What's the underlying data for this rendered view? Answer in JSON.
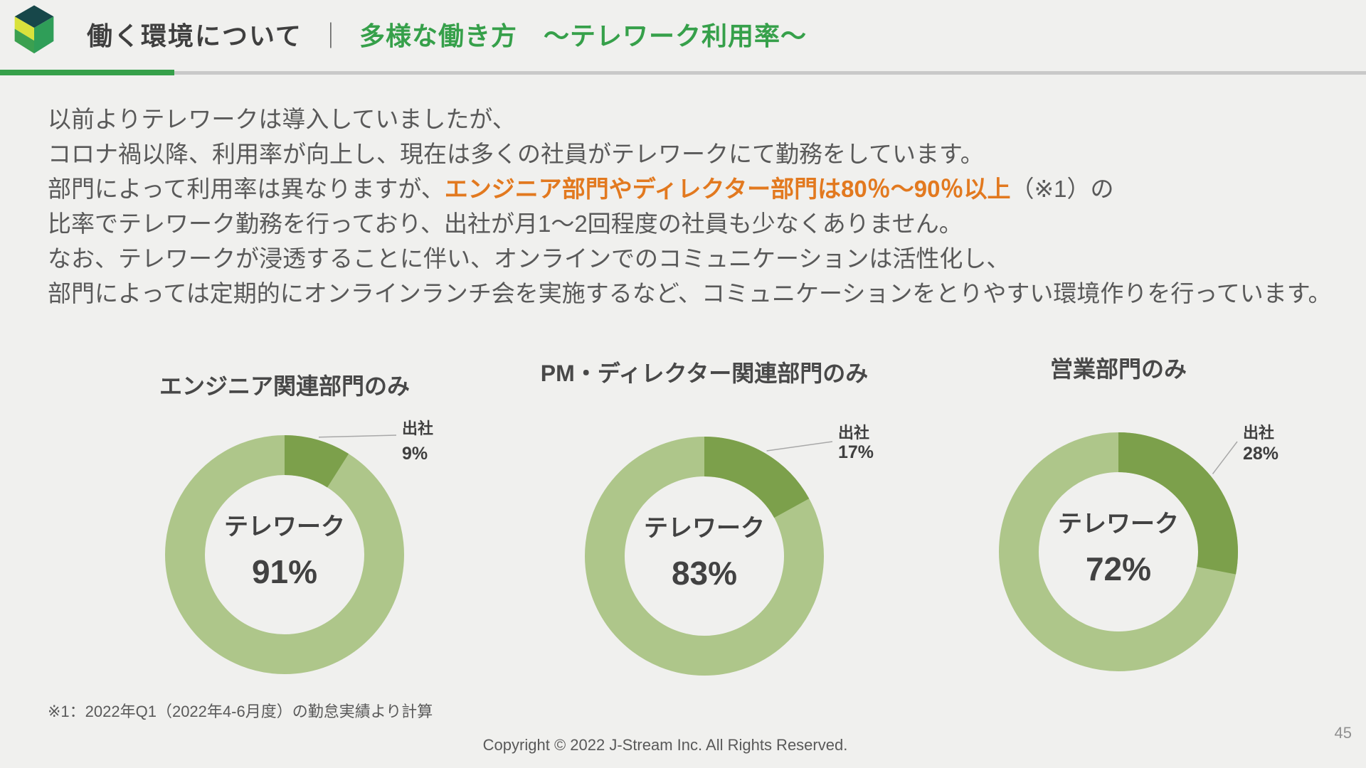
{
  "colors": {
    "accent_green": "#36a04a",
    "highlight_orange": "#e2791f",
    "donut_telework": "#aec68a",
    "donut_office": "#7ca04b",
    "text_dark": "#3f3f3f",
    "text_body": "#595959",
    "rule_gray": "#c9c9c9",
    "page_bg": "#f0f0ee"
  },
  "header": {
    "title_left": "働く環境について",
    "separator": "｜",
    "title_right": "多様な働き方　～テレワーク利用率～"
  },
  "paragraph": {
    "lines": [
      {
        "text": "以前よりテレワークは導入していましたが、"
      },
      {
        "text": "コロナ禍以降、利用率が向上し、現在は多くの社員がテレワークにて勤務をしています。"
      },
      {
        "pre": "部門によって利用率は異なりますが、",
        "highlight": "エンジニア部門やディレクター部門は80％～90％以上",
        "post": "（※1）の"
      },
      {
        "text": "比率でテレワーク勤務を行っており、出社が月1～2回程度の社員も少なくありません。"
      },
      {
        "text": "なお、テレワークが浸透することに伴い、オンラインでのコミュニケーションは活性化し、"
      },
      {
        "text": "部門によっては定期的にオンラインランチ会を実施するなど、コミュニケーションをとりやすい環境作りを行っています。"
      }
    ]
  },
  "chart_data": [
    {
      "type": "pie",
      "title": "エンジニア関連部門のみ",
      "series": [
        {
          "name": "テレワーク",
          "value": 91
        },
        {
          "name": "出社",
          "value": 9
        }
      ],
      "center_label": "テレワーク",
      "center_value": "91%",
      "callout": {
        "label": "出社",
        "value": "9%"
      }
    },
    {
      "type": "pie",
      "title": "PM・ディレクター関連部門のみ",
      "series": [
        {
          "name": "テレワーク",
          "value": 83
        },
        {
          "name": "出社",
          "value": 17
        }
      ],
      "center_label": "テレワーク",
      "center_value": "83%",
      "callout": {
        "label": "出社",
        "value": "17%"
      }
    },
    {
      "type": "pie",
      "title": "営業部門のみ",
      "series": [
        {
          "name": "テレワーク",
          "value": 72
        },
        {
          "name": "出社",
          "value": 28
        }
      ],
      "center_label": "テレワーク",
      "center_value": "72%",
      "callout": {
        "label": "出社",
        "value": "28%"
      }
    }
  ],
  "footnote": "※1：2022年Q1（2022年4-6月度）の勤怠実績より計算",
  "footer": {
    "copyright": "Copyright © 2022 J-Stream Inc. All Rights Reserved.",
    "page_number": "45"
  }
}
